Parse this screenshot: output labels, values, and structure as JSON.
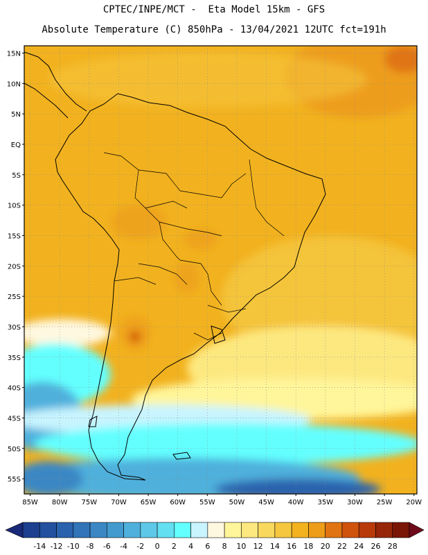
{
  "header": {
    "line1": "CPTEC/INPE/MCT -  Eta Model 15km - GFS",
    "line2": "Absolute Temperature (C) 850hPa - 13/04/2021 12UTC fct=191h"
  },
  "map": {
    "region": "South America",
    "lat_labels": [
      "15N",
      "10N",
      "5N",
      "EQ",
      "5S",
      "10S",
      "15S",
      "20S",
      "25S",
      "30S",
      "35S",
      "40S",
      "45S",
      "50S",
      "55S"
    ],
    "lon_labels": [
      "85W",
      "80W",
      "75W",
      "70W",
      "65W",
      "60W",
      "55W",
      "50W",
      "45W",
      "40W",
      "35W",
      "30W",
      "25W",
      "20W"
    ],
    "lat_range": [
      15,
      -58
    ],
    "lon_range": [
      -85,
      -20
    ],
    "grid": "dotted"
  },
  "colorbar": {
    "labels": [
      "-14",
      "-12",
      "-10",
      "-8",
      "-6",
      "-4",
      "-2",
      "0",
      "2",
      "4",
      "6",
      "8",
      "10",
      "12",
      "14",
      "16",
      "18",
      "20",
      "22",
      "24",
      "26",
      "28"
    ],
    "colors": [
      "#1c3f8f",
      "#23509f",
      "#2a62ad",
      "#3174b8",
      "#3a87c4",
      "#439acf",
      "#4fb0dc",
      "#5ec8e8",
      "#63dff2",
      "#63ffff",
      "#c8f4ff",
      "#fff8e0",
      "#fff59a",
      "#fde880",
      "#f9d85e",
      "#f5c740",
      "#f2b21f",
      "#ed9d1a",
      "#e07412",
      "#cf520d",
      "#b83a0a",
      "#972608",
      "#7a1606"
    ],
    "arrow_left": "#1a2878",
    "arrow_right": "#6e0a1a"
  }
}
